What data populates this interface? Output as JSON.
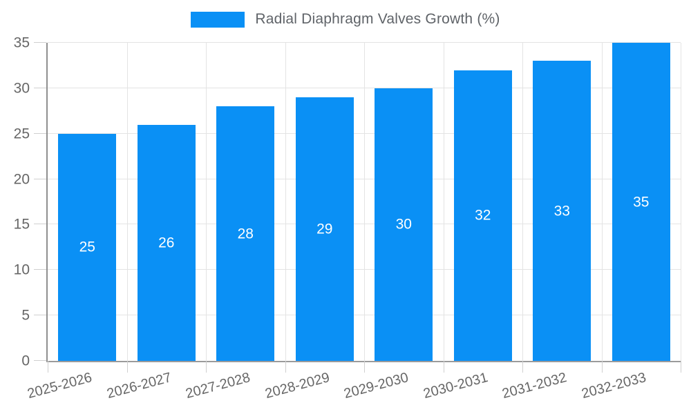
{
  "legend": {
    "label": "Radial Diaphragm Valves Growth (%)"
  },
  "chart_data": {
    "type": "bar",
    "title": "Radial Diaphragm Valves Growth (%)",
    "categories": [
      "2025-2026",
      "2026-2027",
      "2027-2028",
      "2028-2029",
      "2029-2030",
      "2030-2031",
      "2031-2032",
      "2032-2033"
    ],
    "values": [
      25,
      26,
      28,
      29,
      30,
      32,
      33,
      35
    ],
    "value_labels": [
      "25",
      "26",
      "28",
      "29",
      "30",
      "32",
      "33",
      "35"
    ],
    "xlabel": "",
    "ylabel": "",
    "ylim": [
      0,
      35
    ],
    "yticks": [
      0,
      5,
      10,
      15,
      20,
      25,
      30,
      35
    ],
    "grid": true,
    "legend_position": "top-center",
    "colors": {
      "bar": "#0a90f5",
      "value_label": "#ffffff",
      "axis_text": "#666666",
      "legend_text": "#5f6368",
      "gridline": "#e3e3e3",
      "axis_line": "#8f8f8f",
      "tick": "#cfcfcf",
      "background": "#ffffff"
    }
  }
}
